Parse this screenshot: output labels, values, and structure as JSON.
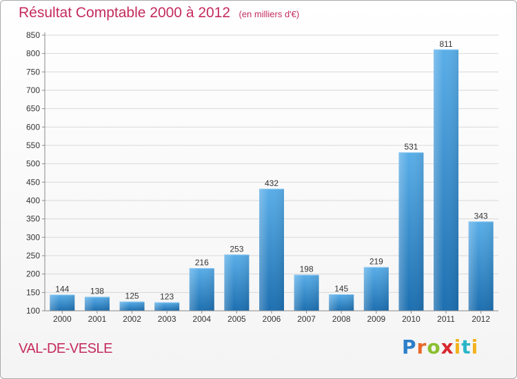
{
  "header": {
    "title": "Résultat Comptable 2000 à 2012",
    "subtitle": "(en milliers d'€)"
  },
  "commune": "VAL-DE-VESLE",
  "logo": {
    "text": "Proxiti"
  },
  "colors": {
    "title": "#c42a5c",
    "bar_top": "#5aaee8",
    "bar_bottom": "#1d6fb0",
    "grid": "#d8d8d8",
    "axis": "#888888",
    "text": "#333333"
  },
  "chart_data": {
    "type": "bar",
    "title": "Résultat Comptable 2000 à 2012",
    "subtitle": "(en milliers d'€)",
    "categories": [
      "2000",
      "2001",
      "2002",
      "2003",
      "2004",
      "2005",
      "2006",
      "2007",
      "2008",
      "2009",
      "2010",
      "2011",
      "2012"
    ],
    "values": [
      144,
      138,
      125,
      123,
      216,
      253,
      432,
      198,
      145,
      219,
      531,
      811,
      343
    ],
    "ylim": [
      100,
      850
    ],
    "yticks": [
      100,
      150,
      200,
      250,
      300,
      350,
      400,
      450,
      500,
      550,
      600,
      650,
      700,
      750,
      800,
      850
    ],
    "grid": true,
    "data_labels": true
  }
}
